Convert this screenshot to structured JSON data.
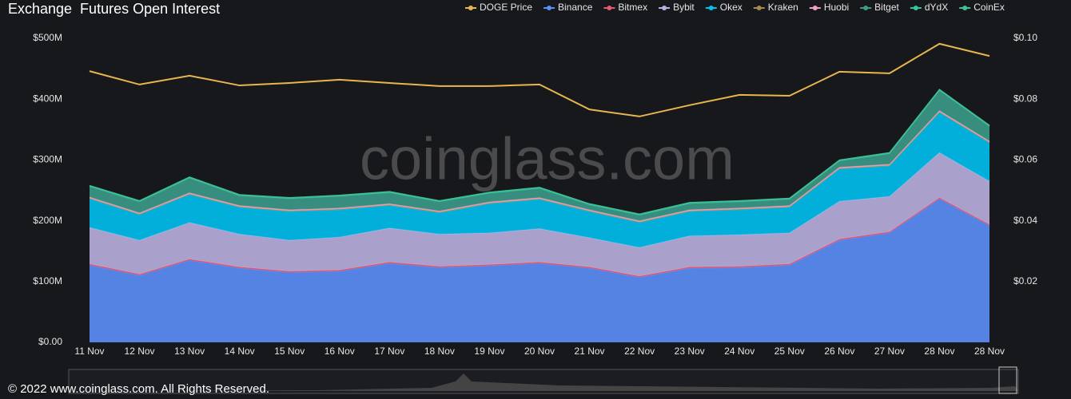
{
  "chart_data": {
    "type": "stacked-area",
    "title": "Exchange  Futures Open Interest",
    "watermark": "coinglass.com",
    "footer": "© 2022 www.coinglass.com. All Rights Reserved.",
    "categories": [
      "11 Nov",
      "12 Nov",
      "13 Nov",
      "14 Nov",
      "15 Nov",
      "16 Nov",
      "17 Nov",
      "18 Nov",
      "19 Nov",
      "20 Nov",
      "21 Nov",
      "22 Nov",
      "23 Nov",
      "24 Nov",
      "25 Nov",
      "26 Nov",
      "27 Nov",
      "28 Nov",
      "28 Nov"
    ],
    "ylim": [
      0,
      500000000
    ],
    "yticks": [
      {
        "value": 0,
        "label": "$0.00"
      },
      {
        "value": 100000000,
        "label": "$100M"
      },
      {
        "value": 200000000,
        "label": "$200M"
      },
      {
        "value": 300000000,
        "label": "$300M"
      },
      {
        "value": 400000000,
        "label": "$400M"
      },
      {
        "value": 500000000,
        "label": "$500M"
      }
    ],
    "y2lim": [
      0,
      0.1
    ],
    "y2ticks": [
      {
        "value": 0.02,
        "label": "$0.02"
      },
      {
        "value": 0.04,
        "label": "$0.04"
      },
      {
        "value": 0.06,
        "label": "$0.06"
      },
      {
        "value": 0.08,
        "label": "$0.08"
      },
      {
        "value": 0.1,
        "label": "$0.10"
      }
    ],
    "series": [
      {
        "name": "DOGE Price",
        "color": "#e8b64e",
        "axis": "y2",
        "values": [
          0.0892,
          0.0848,
          0.0877,
          0.0845,
          0.0853,
          0.0864,
          0.0853,
          0.0843,
          0.0843,
          0.0848,
          0.0766,
          0.0743,
          0.078,
          0.0814,
          0.0811,
          0.089,
          0.0885,
          0.0982,
          0.0942
        ]
      },
      {
        "name": "Binance",
        "color": "#5b8ff9",
        "values": [
          127000000.0,
          110000000.0,
          135000000.0,
          122000000.0,
          115000000.0,
          117000000.0,
          130000000.0,
          123000000.0,
          126000000.0,
          130000000.0,
          122000000.0,
          107000000.0,
          122000000.0,
          123000000.0,
          127000000.0,
          168000000.0,
          180000000.0,
          236000000.0,
          192000000.0
        ]
      },
      {
        "name": "Bitmex",
        "color": "#e8596e",
        "values": [
          2000000.0,
          2000000.0,
          2000000.0,
          2000000.0,
          2000000.0,
          2000000.0,
          2000000.0,
          2000000.0,
          2000000.0,
          2000000.0,
          2000000.0,
          2000000.0,
          2000000.0,
          2000000.0,
          2000000.0,
          2000000.0,
          2000000.0,
          2000000.0,
          2000000.0
        ]
      },
      {
        "name": "Bybit",
        "color": "#b9b0e0",
        "values": [
          60000000.0,
          56000000.0,
          60000000.0,
          54000000.0,
          51000000.0,
          54000000.0,
          56000000.0,
          53000000.0,
          52000000.0,
          55000000.0,
          48000000.0,
          47000000.0,
          51000000.0,
          52000000.0,
          51000000.0,
          62000000.0,
          58000000.0,
          74000000.0,
          71000000.0
        ]
      },
      {
        "name": "Okex",
        "color": "#00c0f0",
        "values": [
          47000000.0,
          42000000.0,
          46000000.0,
          44000000.0,
          47000000.0,
          45000000.0,
          37000000.0,
          35000000.0,
          48000000.0,
          48000000.0,
          43000000.0,
          41000000.0,
          40000000.0,
          41000000.0,
          42000000.0,
          53000000.0,
          50000000.0,
          66000000.0,
          63000000.0
        ]
      },
      {
        "name": "Kraken",
        "color": "#a88a4a",
        "values": [
          1000000.0,
          1000000.0,
          1000000.0,
          1000000.0,
          1000000.0,
          1000000.0,
          1000000.0,
          1000000.0,
          1000000.0,
          1000000.0,
          1000000.0,
          1000000.0,
          1000000.0,
          1000000.0,
          1000000.0,
          1000000.0,
          1000000.0,
          1000000.0,
          1000000.0
        ]
      },
      {
        "name": "Huobi",
        "color": "#f0a0c0",
        "values": [
          2000000.0,
          2000000.0,
          2000000.0,
          2000000.0,
          2000000.0,
          2000000.0,
          2000000.0,
          2000000.0,
          2000000.0,
          2000000.0,
          2000000.0,
          2000000.0,
          2000000.0,
          2000000.0,
          2000000.0,
          2000000.0,
          2000000.0,
          2000000.0,
          2000000.0
        ]
      },
      {
        "name": "Bitget",
        "color": "#3b9a8a",
        "values": [
          17000000.0,
          18000000.0,
          24000000.0,
          16000000.0,
          18000000.0,
          19000000.0,
          18000000.0,
          15000000.0,
          14000000.0,
          15000000.0,
          8000000.0,
          9000000.0,
          10000000.0,
          10000000.0,
          10000000.0,
          10000000.0,
          17000000.0,
          33000000.0,
          24000000.0
        ]
      },
      {
        "name": "dYdX",
        "color": "#2fc5a0",
        "values": [
          1000000.0,
          1000000.0,
          1000000.0,
          1000000.0,
          1000000.0,
          1000000.0,
          1000000.0,
          1000000.0,
          1000000.0,
          1000000.0,
          1000000.0,
          1000000.0,
          1000000.0,
          1000000.0,
          1000000.0,
          1000000.0,
          1000000.0,
          1000000.0,
          1000000.0
        ]
      },
      {
        "name": "CoinEx",
        "color": "#40c090",
        "values": [
          1000000.0,
          1000000.0,
          1000000.0,
          1000000.0,
          1000000.0,
          1000000.0,
          1000000.0,
          1000000.0,
          1000000.0,
          1000000.0,
          1000000.0,
          1000000.0,
          1000000.0,
          1000000.0,
          1000000.0,
          1000000.0,
          1000000.0,
          1000000.0,
          1000000.0
        ]
      }
    ]
  }
}
